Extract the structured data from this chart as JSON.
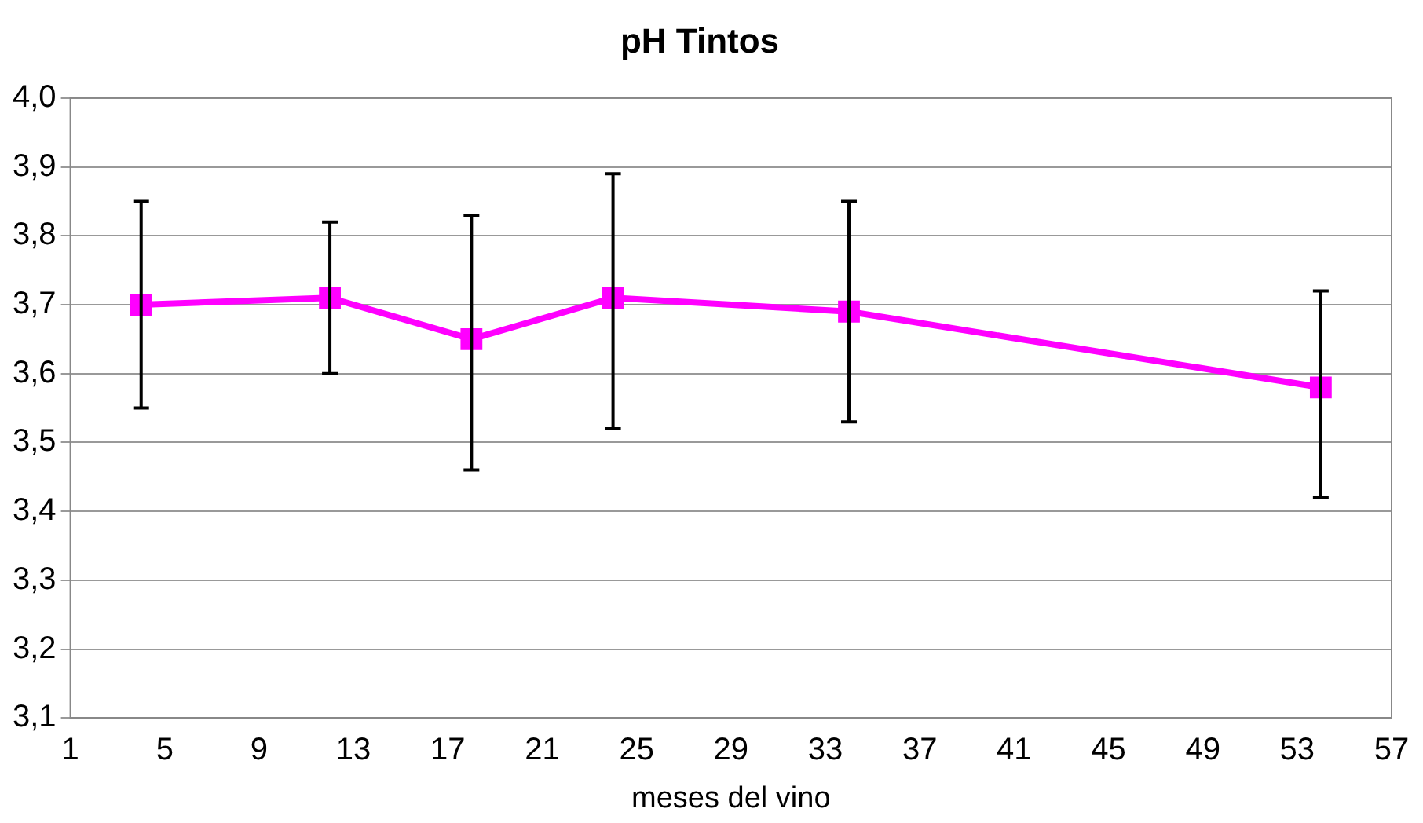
{
  "chart_data": {
    "type": "line",
    "title": "pH Tintos",
    "xlabel": "meses del vino",
    "x": [
      4,
      12,
      18,
      24,
      34,
      54
    ],
    "series": [
      {
        "color": "#ff00ff",
        "values": [
          3.7,
          3.71,
          3.65,
          3.71,
          3.69,
          3.58
        ],
        "errors": [
          [
            3.55,
            3.85
          ],
          [
            3.6,
            3.82
          ],
          [
            3.46,
            3.83
          ],
          [
            3.52,
            3.89
          ],
          [
            3.53,
            3.85
          ],
          [
            3.42,
            3.72
          ]
        ]
      }
    ],
    "xlim": [
      1,
      57
    ],
    "xticks": [
      1,
      5,
      9,
      13,
      17,
      21,
      25,
      29,
      33,
      37,
      41,
      45,
      49,
      53,
      57
    ],
    "ylim": [
      3.1,
      4.0
    ],
    "yticks": [
      {
        "value": 3.1,
        "label": "3,1"
      },
      {
        "value": 3.2,
        "label": "3,2"
      },
      {
        "value": 3.3,
        "label": "3,3"
      },
      {
        "value": 3.4,
        "label": "3,4"
      },
      {
        "value": 3.5,
        "label": "3,5"
      },
      {
        "value": 3.6,
        "label": "3,6"
      },
      {
        "value": 3.7,
        "label": "3,7"
      },
      {
        "value": 3.8,
        "label": "3,8"
      },
      {
        "value": 3.9,
        "label": "3,9"
      },
      {
        "value": 4.0,
        "label": "4,0"
      }
    ],
    "grid": "y",
    "legend": false,
    "marker": "square",
    "line_style": "solid"
  }
}
